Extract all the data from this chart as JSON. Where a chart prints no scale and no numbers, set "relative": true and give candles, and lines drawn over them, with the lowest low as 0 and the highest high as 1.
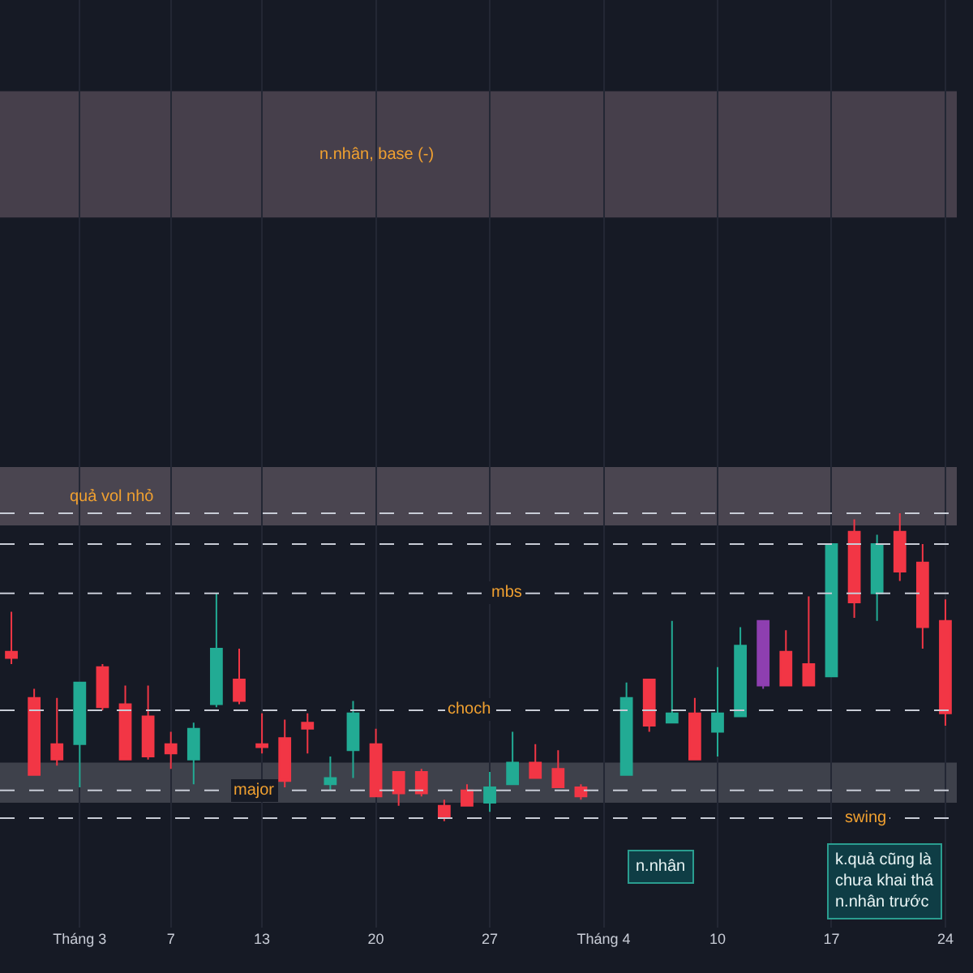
{
  "chart_data": {
    "type": "candlestick",
    "relative": true,
    "grid": "x",
    "categories": [
      null,
      null,
      null,
      "Tháng 3",
      null,
      null,
      null,
      "7",
      null,
      null,
      null,
      "13",
      null,
      null,
      null,
      null,
      "20",
      null,
      null,
      null,
      null,
      "27",
      null,
      null,
      null,
      null,
      "Tháng 4",
      null,
      null,
      null,
      null,
      "10",
      null,
      null,
      null,
      null,
      "17",
      null,
      null,
      null,
      null,
      "24"
    ],
    "ohlc": [
      [
        0.55,
        0.68,
        0.51,
        0.53
      ],
      [
        0.4,
        0.43,
        0.15,
        0.15
      ],
      [
        0.25,
        0.4,
        0.18,
        0.2
      ],
      [
        0.25,
        0.45,
        0.11,
        0.45
      ],
      [
        0.5,
        0.51,
        0.36,
        0.37
      ],
      [
        0.38,
        0.44,
        0.2,
        0.2
      ],
      [
        0.34,
        0.44,
        0.2,
        0.21
      ],
      [
        0.25,
        0.29,
        0.17,
        0.22
      ],
      [
        0.2,
        0.32,
        0.12,
        0.3
      ],
      [
        0.38,
        0.74,
        0.37,
        0.56
      ],
      [
        0.46,
        0.56,
        0.38,
        0.39
      ],
      [
        0.25,
        0.35,
        0.22,
        0.24
      ],
      [
        0.27,
        0.33,
        0.11,
        0.13
      ],
      [
        0.32,
        0.35,
        0.22,
        0.3
      ],
      [
        0.12,
        0.21,
        0.1,
        0.14
      ],
      [
        0.23,
        0.39,
        0.14,
        0.35
      ],
      [
        0.25,
        0.3,
        0.08,
        0.08
      ],
      [
        0.16,
        0.16,
        0.05,
        0.09
      ],
      [
        0.16,
        0.17,
        0.08,
        0.09
      ],
      [
        0.05,
        0.07,
        0.0,
        0.01
      ],
      [
        0.1,
        0.12,
        0.05,
        0.05
      ],
      [
        0.06,
        0.16,
        0.03,
        0.11
      ],
      [
        0.12,
        0.29,
        0.12,
        0.19
      ],
      [
        0.19,
        0.25,
        0.14,
        0.14
      ],
      [
        0.17,
        0.23,
        0.11,
        0.11
      ],
      [
        0.11,
        0.12,
        0.07,
        0.08
      ],
      null,
      [
        0.15,
        0.45,
        0.15,
        0.4
      ],
      [
        0.46,
        0.46,
        0.29,
        0.31
      ],
      [
        0.32,
        0.65,
        0.32,
        0.35
      ],
      [
        0.35,
        0.4,
        0.2,
        0.2
      ],
      [
        0.29,
        0.5,
        0.21,
        0.35
      ],
      [
        0.34,
        0.63,
        0.34,
        0.57
      ],
      [
        0.44,
        0.65,
        0.43,
        0.65
      ],
      [
        0.55,
        0.62,
        0.44,
        0.44
      ],
      [
        0.51,
        0.73,
        0.44,
        0.44
      ],
      [
        0.47,
        0.9,
        0.47,
        0.9
      ],
      [
        0.94,
        0.98,
        0.66,
        0.71
      ],
      [
        0.74,
        0.93,
        0.65,
        0.9
      ],
      [
        0.94,
        1.0,
        0.78,
        0.81
      ],
      [
        0.84,
        0.9,
        0.56,
        0.63
      ],
      [
        0.65,
        0.72,
        0.31,
        0.35
      ]
    ],
    "colors": [
      "#f23645",
      "#f23645",
      "#f23645",
      "#22ab94",
      "#f23645",
      "#f23645",
      "#f23645",
      "#f23645",
      "#22ab94",
      "#22ab94",
      "#f23645",
      "#f23645",
      "#f23645",
      "#f23645",
      "#22ab94",
      "#22ab94",
      "#f23645",
      "#f23645",
      "#f23645",
      "#f23645",
      "#f23645",
      "#22ab94",
      "#22ab94",
      "#f23645",
      "#f23645",
      "#f23645",
      null,
      "#22ab94",
      "#f23645",
      "#22ab94",
      "#f23645",
      "#22ab94",
      "#22ab94",
      "#8e3fb0",
      "#f23645",
      "#f23645",
      "#22ab94",
      "#f23645",
      "#22ab94",
      "#f23645",
      "#f23645",
      "#f23645"
    ],
    "ref_lines": [
      {
        "axis": "y",
        "value": 0.74,
        "label": "mbs",
        "color": "#c8ccd6",
        "line_style": "dashed"
      },
      {
        "axis": "y",
        "value": 0.36,
        "label": "choch",
        "color": "#c8ccd6",
        "line_style": "dashed"
      },
      {
        "axis": "y",
        "value": 0.1,
        "label": "major",
        "color": "#c8ccd6",
        "line_style": "dashed"
      },
      {
        "axis": "y",
        "value": 0.01,
        "label": "swing",
        "color": "#c8ccd6",
        "line_style": "dashed"
      },
      {
        "axis": "y",
        "value": 1.0,
        "color": "#c8ccd6",
        "line_style": "dashed"
      },
      {
        "axis": "y",
        "value": 0.9,
        "color": "#c8ccd6",
        "line_style": "dashed"
      }
    ],
    "bands": [
      {
        "axis": "y",
        "from": 1.96,
        "to": 2.37,
        "label": "n.nhân, base (-)",
        "color": "#463f4b"
      },
      {
        "axis": "y",
        "from": 0.96,
        "to": 1.15,
        "label": "quả vol nhỏ",
        "color": "#4a4550"
      },
      {
        "axis": "y",
        "from": 0.06,
        "to": 0.19,
        "color": "#3e414b"
      }
    ],
    "annotations": [
      "n.nhân",
      "k.quả cũng là\nchưa khai thá\nn.nhân trước"
    ]
  }
}
